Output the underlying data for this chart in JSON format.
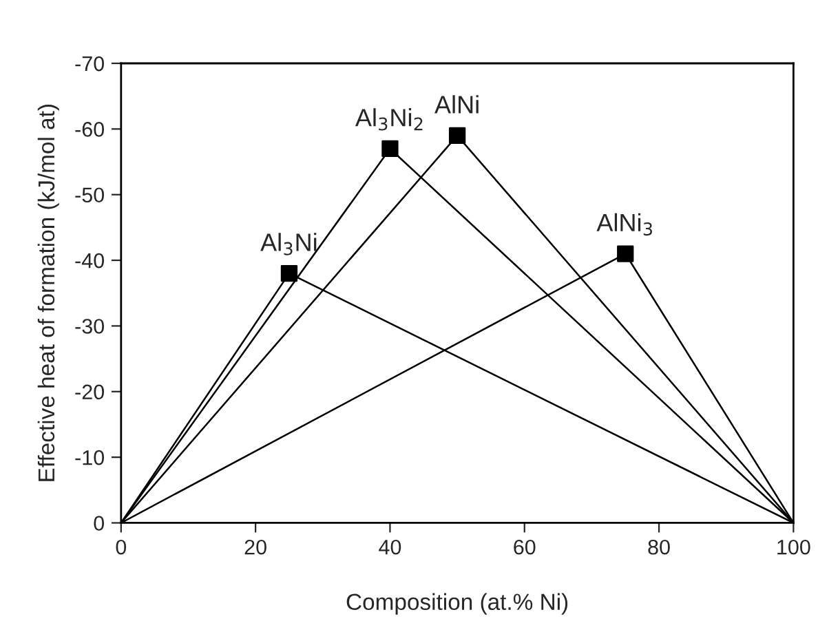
{
  "chart_data": {
    "type": "line",
    "xlabel": "Composition (at.% Ni)",
    "ylabel": "Effective heat of formation (kJ/mol at)",
    "xlim": [
      0,
      100
    ],
    "xticks": [
      0,
      20,
      40,
      60,
      80,
      100
    ],
    "ylim": [
      0,
      -70
    ],
    "yticks": [
      0,
      -10,
      -20,
      -30,
      -40,
      -50,
      -60,
      -70
    ],
    "grid": false,
    "legend": false,
    "series": [
      {
        "color": "#000000",
        "x": [
          0,
          25,
          100
        ],
        "values": [
          0,
          -38,
          0
        ],
        "marker": "none",
        "line_style": "solid"
      },
      {
        "color": "#000000",
        "x": [
          0,
          40,
          100
        ],
        "values": [
          0,
          -57,
          0
        ],
        "marker": "none",
        "line_style": "solid"
      },
      {
        "color": "#000000",
        "x": [
          0,
          50,
          100
        ],
        "values": [
          0,
          -59,
          0
        ],
        "marker": "none",
        "line_style": "solid"
      },
      {
        "color": "#000000",
        "x": [
          0,
          75,
          100
        ],
        "values": [
          0,
          -41,
          0
        ],
        "marker": "none",
        "line_style": "solid"
      },
      {
        "type": "scatter",
        "color": "#000000",
        "x": [
          25,
          40,
          50,
          75
        ],
        "values": [
          -38,
          -57,
          -59,
          -41
        ],
        "marker": "square"
      }
    ],
    "annotations": [
      {
        "text": "Al$_{3}$Ni",
        "x": 25,
        "y": -38
      },
      {
        "text": "Al$_{3}$Ni$_{2}$",
        "x": 40,
        "y": -57
      },
      {
        "text": "AlNi",
        "x": 50,
        "y": -59
      },
      {
        "text": "AlNi$_{3}$",
        "x": 75,
        "y": -41
      }
    ]
  }
}
